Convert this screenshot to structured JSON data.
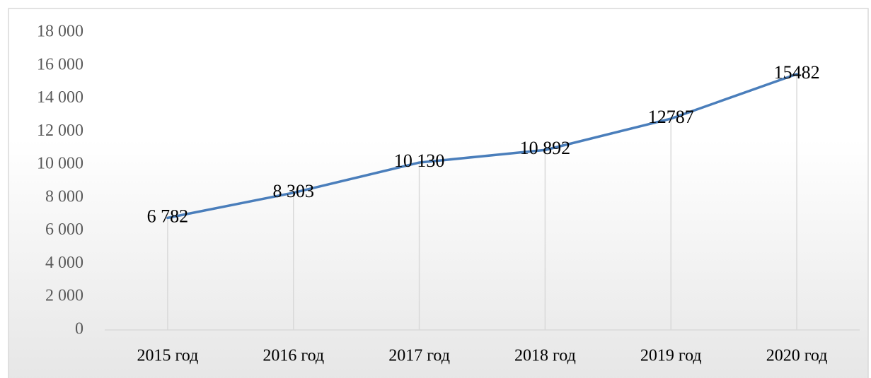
{
  "chart_data": {
    "type": "line",
    "categories": [
      "2015 год",
      "2016 год",
      "2017 год",
      "2018 год",
      "2019 год",
      "2020 год"
    ],
    "series": [
      {
        "color": "#4a7ebb",
        "values": [
          6782,
          8303,
          10130,
          10892,
          12787,
          15482
        ],
        "value_labels": [
          "6 782",
          "8 303",
          "10 130",
          "10 892",
          "12787",
          "15482"
        ]
      }
    ],
    "ylim": [
      0,
      18000
    ],
    "yticks": [
      0,
      {
        "value": 2000,
        "label": "2 000"
      },
      {
        "value": 4000,
        "label": "4 000"
      },
      {
        "value": 6000,
        "label": "6 000"
      },
      {
        "value": 8000,
        "label": "8 000"
      },
      {
        "value": 10000,
        "label": "10 000"
      },
      {
        "value": 12000,
        "label": "12 000"
      },
      {
        "value": 14000,
        "label": "14 000"
      },
      {
        "value": 16000,
        "label": "16 000"
      },
      {
        "value": 18000,
        "label": "18 000"
      }
    ],
    "drop_lines": true
  }
}
